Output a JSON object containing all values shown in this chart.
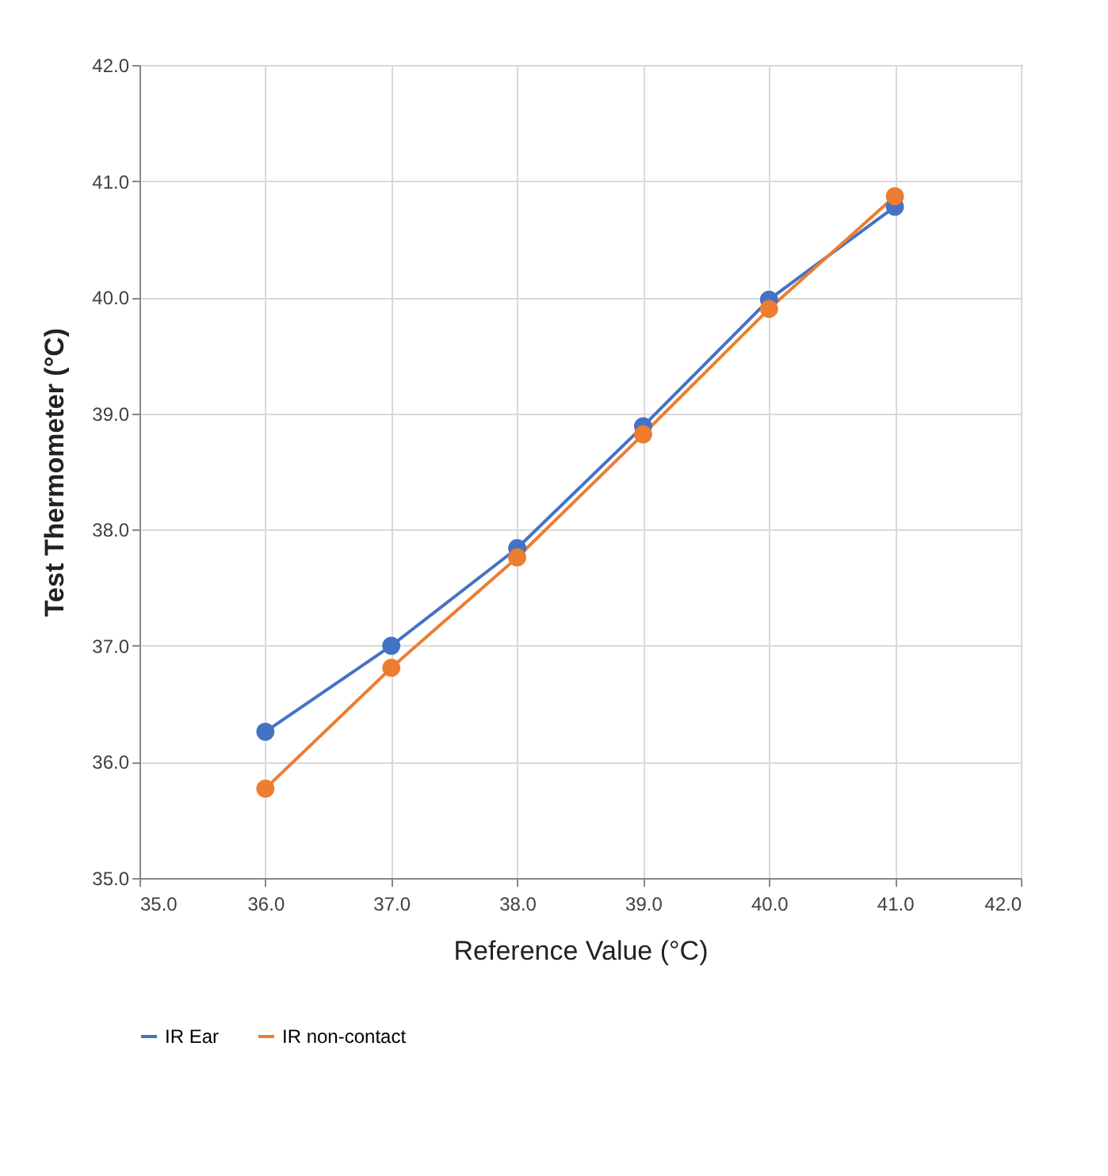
{
  "chart_data": {
    "type": "line",
    "xlabel": "Reference Value (°C)",
    "ylabel": "Test Thermometer (°C)",
    "x": [
      36.0,
      37.0,
      38.0,
      39.0,
      40.0,
      41.0
    ],
    "series": [
      {
        "name": "IR Ear",
        "color": "#4472c4",
        "values": [
          36.26,
          37.0,
          37.84,
          38.89,
          39.98,
          40.78
        ]
      },
      {
        "name": "IR non-contact",
        "color": "#ed7d31",
        "values": [
          35.77,
          36.81,
          37.76,
          38.82,
          39.9,
          40.87
        ]
      }
    ],
    "xlim": [
      35.0,
      42.0
    ],
    "ylim": [
      35.0,
      42.0
    ],
    "xticks": [
      {
        "value": 35,
        "label": "35.0"
      },
      {
        "value": 36,
        "label": "36.0"
      },
      {
        "value": 37,
        "label": "37.0"
      },
      {
        "value": 38,
        "label": "38.0"
      },
      {
        "value": 39,
        "label": "39.0"
      },
      {
        "value": 40,
        "label": "40.0"
      },
      {
        "value": 41,
        "label": "41.0"
      },
      {
        "value": 42,
        "label": "42.0"
      }
    ],
    "yticks": [
      {
        "value": 35,
        "label": "35.0"
      },
      {
        "value": 36,
        "label": "36.0"
      },
      {
        "value": 37,
        "label": "37.0"
      },
      {
        "value": 38,
        "label": "38.0"
      },
      {
        "value": 39,
        "label": "39.0"
      },
      {
        "value": 40,
        "label": "40.0"
      },
      {
        "value": 41,
        "label": "41.0"
      },
      {
        "value": 42,
        "label": "42.0"
      }
    ],
    "grid": true,
    "legend": "bottom",
    "marker": "circle",
    "line_style": "solid"
  }
}
